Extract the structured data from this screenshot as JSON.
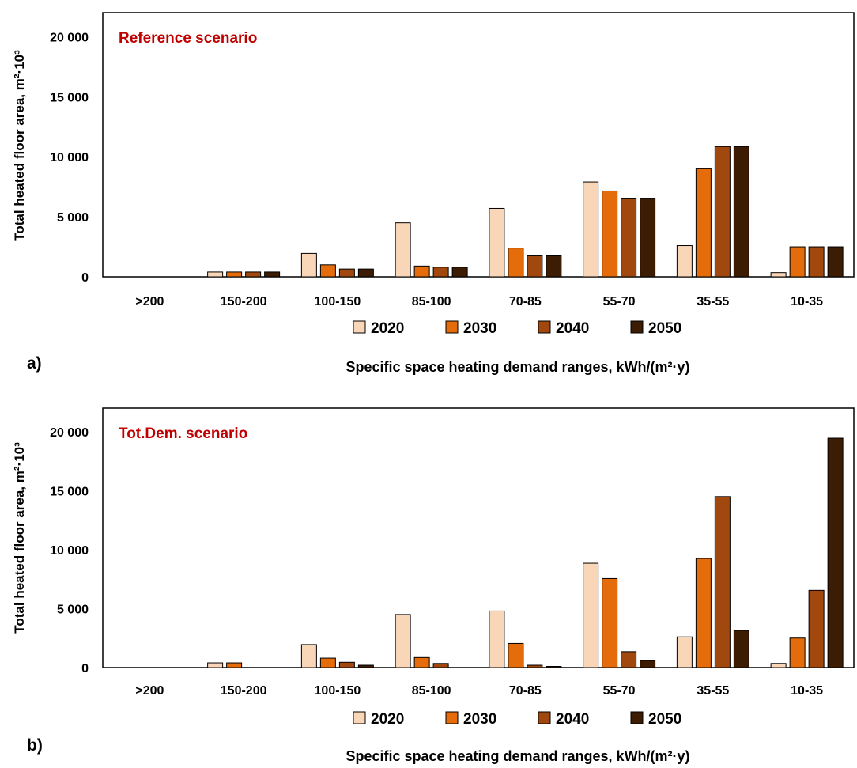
{
  "colors": {
    "series": [
      "#fad6b8",
      "#e46c0a",
      "#a0480e",
      "#3d1c04"
    ],
    "title": "#c00000",
    "border": "#000000"
  },
  "chart_data": [
    {
      "type": "bar",
      "panel_label": "a)",
      "title": "Reference scenario",
      "xlabel": "Specific space heating demand ranges, kWh/(m²·y)",
      "ylabel": "Total heated floor area, m²·10³",
      "categories": [
        ">200",
        "150-200",
        "100-150",
        "85-100",
        "70-85",
        "55-70",
        "35-55",
        "10-35"
      ],
      "ylim": [
        0,
        22000
      ],
      "yticks": [
        0,
        5000,
        10000,
        15000,
        20000
      ],
      "ytick_labels": [
        "0",
        "5 000",
        "10 000",
        "15 000",
        "20 000"
      ],
      "legend_position": "bottom",
      "grid": false,
      "series": [
        {
          "name": "2020",
          "values": [
            0,
            400,
            1950,
            4500,
            5700,
            7900,
            2600,
            350
          ]
        },
        {
          "name": "2030",
          "values": [
            0,
            400,
            1000,
            900,
            2400,
            7150,
            9000,
            2500
          ]
        },
        {
          "name": "2040",
          "values": [
            0,
            400,
            650,
            800,
            1750,
            6550,
            10850,
            2500
          ]
        },
        {
          "name": "2050",
          "values": [
            0,
            400,
            650,
            800,
            1750,
            6550,
            10850,
            2500
          ]
        }
      ]
    },
    {
      "type": "bar",
      "panel_label": "b)",
      "title": "Tot.Dem. scenario",
      "xlabel": "Specific space heating demand ranges, kWh/(m²·y)",
      "ylabel": "Total heated floor area, m²·10³",
      "categories": [
        ">200",
        "150-200",
        "100-150",
        "85-100",
        "70-85",
        "55-70",
        "35-55",
        "10-35"
      ],
      "ylim": [
        0,
        22000
      ],
      "yticks": [
        0,
        5000,
        10000,
        15000,
        20000
      ],
      "ytick_labels": [
        "0",
        "5 000",
        "10 000",
        "15 000",
        "20 000"
      ],
      "legend_position": "bottom",
      "grid": false,
      "series": [
        {
          "name": "2020",
          "values": [
            0,
            400,
            1950,
            4500,
            4800,
            8850,
            2600,
            350
          ]
        },
        {
          "name": "2030",
          "values": [
            0,
            400,
            800,
            850,
            2050,
            7550,
            9250,
            2500
          ]
        },
        {
          "name": "2040",
          "values": [
            0,
            0,
            450,
            350,
            200,
            1350,
            14500,
            6550
          ]
        },
        {
          "name": "2050",
          "values": [
            0,
            0,
            200,
            0,
            100,
            600,
            3150,
            19450
          ]
        }
      ]
    }
  ]
}
